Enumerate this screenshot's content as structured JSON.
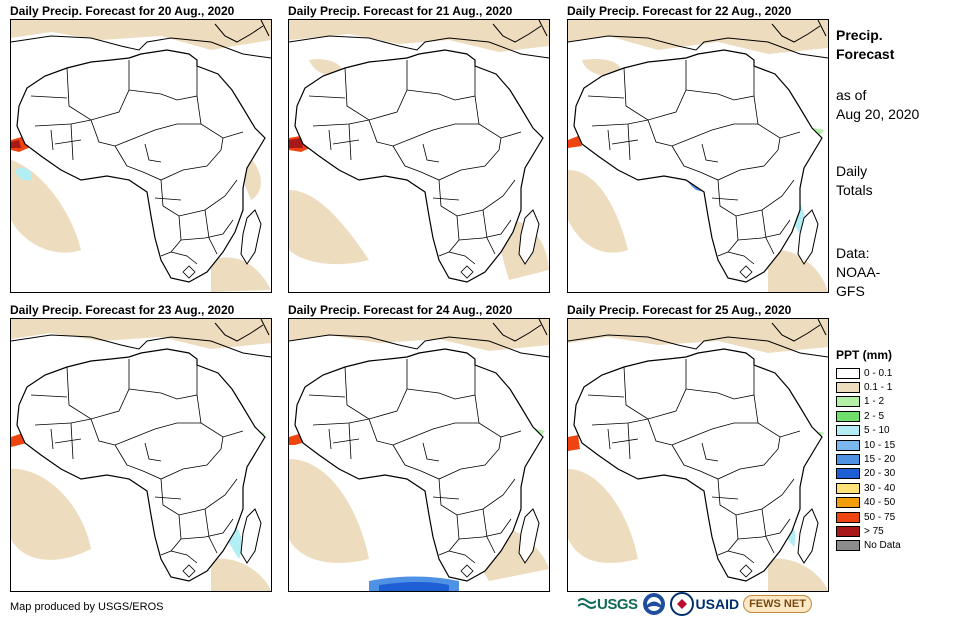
{
  "panels": [
    {
      "title": "Daily Precip. Forecast for 20 Aug., 2020"
    },
    {
      "title": "Daily Precip. Forecast for 21 Aug., 2020"
    },
    {
      "title": "Daily Precip. Forecast for 22 Aug., 2020"
    },
    {
      "title": "Daily Precip. Forecast for 23 Aug., 2020"
    },
    {
      "title": "Daily Precip. Forecast for 24 Aug., 2020"
    },
    {
      "title": "Daily Precip. Forecast for 25 Aug., 2020"
    }
  ],
  "side": {
    "title_line1": "Precip.",
    "title_line2": "Forecast",
    "asof_line1": "as of",
    "asof_line2": "Aug 20, 2020",
    "totals_line1": "Daily",
    "totals_line2": "Totals",
    "data_line1": "Data:",
    "data_line2": "NOAA-",
    "data_line3": "GFS"
  },
  "legend": {
    "title": "PPT (mm)",
    "items": [
      {
        "label": "0 - 0.1",
        "color": "#ffffff"
      },
      {
        "label": "0.1 - 1",
        "color": "#eedcbf"
      },
      {
        "label": "1 - 2",
        "color": "#b4f0a8"
      },
      {
        "label": "2 - 5",
        "color": "#6fde6a"
      },
      {
        "label": "5 - 10",
        "color": "#b2eef4"
      },
      {
        "label": "10 - 15",
        "color": "#7ab7ee"
      },
      {
        "label": "15 - 20",
        "color": "#4f91e4"
      },
      {
        "label": "20 - 30",
        "color": "#1f5fd6"
      },
      {
        "label": "30 - 40",
        "color": "#ffe27a"
      },
      {
        "label": "40 - 50",
        "color": "#f59e0b"
      },
      {
        "label": "50 - 75",
        "color": "#ee4410"
      },
      {
        "label": "> 75",
        "color": "#a81818"
      },
      {
        "label": "No Data",
        "color": "#8c8c8c"
      }
    ]
  },
  "footer": {
    "credit": "Map produced by USGS/EROS"
  },
  "logos": {
    "usgs": "USGS",
    "noaa": "NOAA",
    "usaid": "USAID",
    "fews": "FEWS NET"
  }
}
